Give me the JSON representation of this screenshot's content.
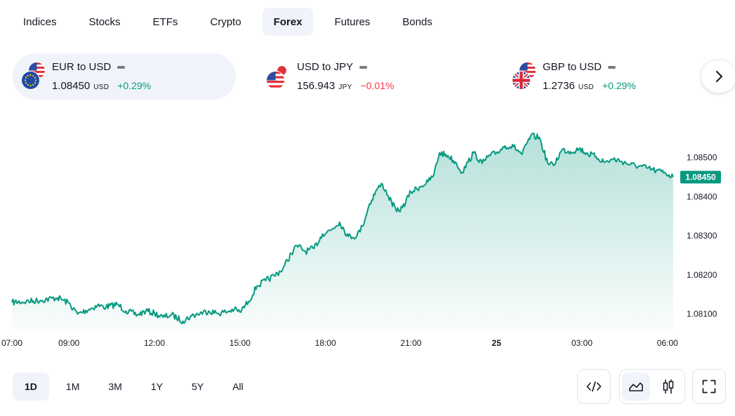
{
  "tabs": [
    {
      "label": "Indices",
      "active": false
    },
    {
      "label": "Stocks",
      "active": false
    },
    {
      "label": "ETFs",
      "active": false
    },
    {
      "label": "Crypto",
      "active": false
    },
    {
      "label": "Forex",
      "active": true
    },
    {
      "label": "Futures",
      "active": false
    },
    {
      "label": "Bonds",
      "active": false
    }
  ],
  "symbols": [
    {
      "name": "EUR to USD",
      "price": "1.08450",
      "currency": "USD",
      "change": "+0.29%",
      "direction": "up",
      "flags": [
        "us-flag-icon",
        "eu-flag-icon"
      ],
      "active": true
    },
    {
      "name": "USD to JPY",
      "price": "156.943",
      "currency": "JPY",
      "change": "−0.01%",
      "direction": "down",
      "flags": [
        "japan-flag-icon",
        "us-flag-icon"
      ],
      "active": false
    },
    {
      "name": "GBP to USD",
      "price": "1.2736",
      "currency": "USD",
      "change": "+0.29%",
      "direction": "up",
      "flags": [
        "us-flag-icon",
        "uk-flag-icon"
      ],
      "active": false
    }
  ],
  "next_icon": "chevron-right-icon",
  "colors": {
    "line": "#089981",
    "positive": "#089981",
    "negative": "#f23645",
    "active_bg": "#f0f3fa",
    "text": "#131722"
  },
  "chart_data": {
    "type": "area",
    "title": "",
    "xlabel": "",
    "ylabel": "",
    "x_tick_labels": [
      "07:00",
      "09:00",
      "12:00",
      "15:00",
      "18:00",
      "21:00",
      "25",
      "03:00",
      "06:00"
    ],
    "x_tick_hours": [
      7,
      9,
      12,
      15,
      18,
      21,
      24,
      27,
      30
    ],
    "x_tick_bold": [
      "25"
    ],
    "y_ticks": [
      "1.08500",
      "1.08400",
      "1.08300",
      "1.08200",
      "1.08100"
    ],
    "y_tick_values": [
      1.085,
      1.084,
      1.083,
      1.082,
      1.081
    ],
    "ylim": [
      1.0806,
      1.0858
    ],
    "xlim_hours": [
      7,
      30.3
    ],
    "last_price_label": "1.08450",
    "grid": false,
    "series": [
      {
        "x_hours": [
          7.0,
          7.5,
          8.0,
          8.6,
          9.0,
          9.3,
          9.7,
          10.0,
          10.3,
          10.7,
          11.0,
          11.4,
          11.7,
          12.0,
          12.3,
          12.6,
          13.0,
          13.3,
          13.6,
          13.9,
          14.2,
          14.5,
          14.8,
          15.0,
          15.3,
          15.6,
          15.9,
          16.2,
          16.5,
          16.8,
          17.0,
          17.3,
          17.6,
          17.9,
          18.2,
          18.5,
          18.8,
          19.1,
          19.3,
          19.55,
          19.8,
          20.0,
          20.2,
          20.5,
          20.7,
          21.0,
          21.3,
          21.6,
          21.8,
          22.0,
          22.3,
          22.6,
          22.8,
          23.0,
          23.2,
          23.5,
          23.7,
          24.0,
          24.3,
          24.6,
          24.9,
          25.2,
          25.5,
          25.8,
          26.0,
          26.3,
          26.6,
          26.9,
          27.2,
          27.5,
          27.8,
          28.1,
          28.4,
          28.7,
          29.0,
          29.3,
          29.6,
          29.9,
          30.2
        ],
        "values": [
          1.0813,
          1.08132,
          1.08135,
          1.08142,
          1.08128,
          1.081,
          1.08112,
          1.08122,
          1.08118,
          1.08125,
          1.08108,
          1.08098,
          1.08108,
          1.08102,
          1.08092,
          1.08098,
          1.08082,
          1.08095,
          1.08102,
          1.08108,
          1.08102,
          1.08105,
          1.08112,
          1.08105,
          1.08132,
          1.08172,
          1.08185,
          1.08198,
          1.08215,
          1.08255,
          1.08275,
          1.0826,
          1.08268,
          1.08305,
          1.08315,
          1.08335,
          1.08298,
          1.083,
          1.08325,
          1.08382,
          1.08418,
          1.08432,
          1.08402,
          1.08362,
          1.08372,
          1.08412,
          1.08425,
          1.08438,
          1.08455,
          1.08512,
          1.08505,
          1.08485,
          1.08462,
          1.08488,
          1.08512,
          1.08485,
          1.08502,
          1.08512,
          1.0853,
          1.08528,
          1.08508,
          1.08555,
          1.08552,
          1.08485,
          1.0848,
          1.0852,
          1.08515,
          1.08523,
          1.0851,
          1.08502,
          1.08488,
          1.08496,
          1.0849,
          1.08482,
          1.08478,
          1.08473,
          1.08466,
          1.08462,
          1.0845
        ]
      }
    ]
  },
  "ranges": [
    {
      "label": "1D",
      "active": true
    },
    {
      "label": "1M",
      "active": false
    },
    {
      "label": "3M",
      "active": false
    },
    {
      "label": "1Y",
      "active": false
    },
    {
      "label": "5Y",
      "active": false
    },
    {
      "label": "All",
      "active": false
    }
  ],
  "controls": {
    "embed_icon": "code-embed-icon",
    "area_icon": "area-chart-icon",
    "candle_icon": "candlestick-chart-icon",
    "fullscreen_icon": "fullscreen-icon"
  }
}
